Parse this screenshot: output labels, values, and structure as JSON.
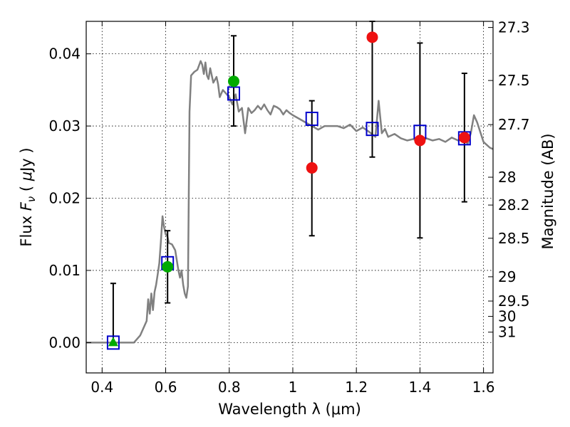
{
  "chart_data": {
    "type": "scatter",
    "xlabel": "Wavelength  λ (μm)",
    "ylabel": "Flux  F_ν  ( μJy )",
    "y2label": "Magnitude (AB)",
    "xlim": [
      0.35,
      1.63
    ],
    "ylim": [
      -0.0042,
      0.0445
    ],
    "grid": true,
    "x_ticks": [
      "0.4",
      "0.6",
      "0.8",
      "1",
      "1.2",
      "1.4",
      "1.6"
    ],
    "y_ticks": [
      "0.00",
      "0.01",
      "0.02",
      "0.03",
      "0.04"
    ],
    "mag_ticks": [
      "27.3",
      "27.5",
      "27.7",
      "28",
      "28.2",
      "28.5",
      "29",
      "29.5",
      "30",
      "31"
    ],
    "colors": {
      "spectrum": "#808080",
      "model": "#0000cc",
      "observed_green": "#00aa00",
      "observed_red": "#ee1111",
      "errorbar": "#000000"
    },
    "series": [
      {
        "kind": "spectrum_line",
        "x": [
          0.35,
          0.5,
          0.52,
          0.54,
          0.545,
          0.55,
          0.555,
          0.56,
          0.565,
          0.57,
          0.575,
          0.58,
          0.585,
          0.59,
          0.595,
          0.6,
          0.605,
          0.61,
          0.62,
          0.63,
          0.64,
          0.645,
          0.65,
          0.655,
          0.66,
          0.665,
          0.67,
          0.675,
          0.68,
          0.69,
          0.7,
          0.71,
          0.715,
          0.72,
          0.725,
          0.73,
          0.735,
          0.74,
          0.75,
          0.76,
          0.765,
          0.77,
          0.78,
          0.79,
          0.8,
          0.81,
          0.82,
          0.83,
          0.84,
          0.85,
          0.86,
          0.87,
          0.88,
          0.89,
          0.9,
          0.91,
          0.92,
          0.93,
          0.94,
          0.95,
          0.96,
          0.97,
          0.98,
          0.99,
          1.0,
          1.02,
          1.04,
          1.06,
          1.08,
          1.1,
          1.12,
          1.14,
          1.16,
          1.18,
          1.2,
          1.22,
          1.24,
          1.26,
          1.27,
          1.28,
          1.29,
          1.3,
          1.32,
          1.34,
          1.36,
          1.38,
          1.4,
          1.42,
          1.44,
          1.46,
          1.48,
          1.5,
          1.52,
          1.54,
          1.55,
          1.56,
          1.57,
          1.58,
          1.6,
          1.62,
          1.63
        ],
        "y": [
          0.0,
          0.0,
          0.001,
          0.003,
          0.006,
          0.004,
          0.0068,
          0.0045,
          0.007,
          0.008,
          0.0095,
          0.011,
          0.014,
          0.0175,
          0.016,
          0.015,
          0.0148,
          0.0138,
          0.0136,
          0.0128,
          0.01,
          0.009,
          0.01,
          0.008,
          0.0068,
          0.0062,
          0.0078,
          0.032,
          0.037,
          0.0375,
          0.0378,
          0.039,
          0.0385,
          0.0372,
          0.0388,
          0.037,
          0.0365,
          0.038,
          0.036,
          0.0368,
          0.0358,
          0.034,
          0.035,
          0.0345,
          0.034,
          0.033,
          0.0344,
          0.032,
          0.0325,
          0.029,
          0.0325,
          0.0318,
          0.0322,
          0.0328,
          0.0323,
          0.033,
          0.0322,
          0.0316,
          0.0328,
          0.0326,
          0.0323,
          0.0316,
          0.0322,
          0.0318,
          0.0315,
          0.031,
          0.0305,
          0.03,
          0.0295,
          0.03,
          0.03,
          0.03,
          0.0297,
          0.0302,
          0.0293,
          0.0298,
          0.0292,
          0.0285,
          0.0335,
          0.029,
          0.0296,
          0.0285,
          0.0289,
          0.0283,
          0.028,
          0.0282,
          0.0275,
          0.0283,
          0.028,
          0.0282,
          0.0278,
          0.0284,
          0.028,
          0.0282,
          0.0275,
          0.029,
          0.0315,
          0.0305,
          0.0278,
          0.027,
          0.0268
        ]
      },
      {
        "kind": "model_photometry",
        "marker": "square",
        "x": [
          0.435,
          0.606,
          0.814,
          1.06,
          1.25,
          1.4,
          1.54
        ],
        "y": [
          0.0,
          0.011,
          0.0345,
          0.031,
          0.0296,
          0.0292,
          0.0283
        ]
      },
      {
        "kind": "observed_green",
        "x": [
          0.606,
          0.814
        ],
        "y": [
          0.0105,
          0.0362
        ],
        "yerr_low": [
          0.0055,
          0.03
        ],
        "yerr_high": [
          0.0155,
          0.0425
        ]
      },
      {
        "kind": "upper_limit_green",
        "marker": "triangle",
        "x": [
          0.435
        ],
        "y": [
          0.0
        ],
        "yerr_low": [
          0.0
        ],
        "yerr_high": [
          0.0082
        ]
      },
      {
        "kind": "observed_red",
        "x": [
          1.06,
          1.25,
          1.4,
          1.54
        ],
        "y": [
          0.0242,
          0.0423,
          0.028,
          0.0284
        ],
        "yerr_low": [
          0.0148,
          0.0257,
          0.0145,
          0.0195
        ],
        "yerr_high": [
          0.0335,
          0.0445,
          0.0415,
          0.0373
        ]
      }
    ]
  }
}
